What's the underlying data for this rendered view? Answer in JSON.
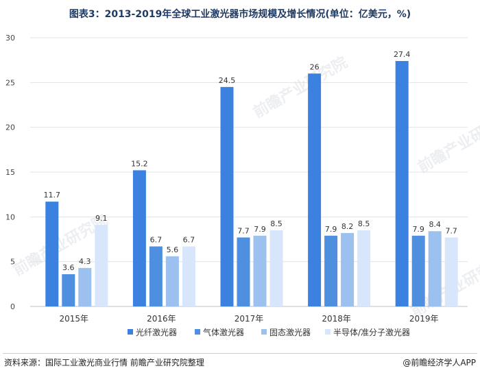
{
  "title": "图表3：2013-2019年全球工业激光器市场规模及增长情况(单位：亿美元，%)",
  "footer": {
    "source": "资料来源：国际工业激光商业行情 前瞻产业研究院整理",
    "brand": "@前瞻经济学人APP"
  },
  "watermark": "前瞻产业研究院",
  "chart_data": {
    "type": "bar",
    "categories": [
      "2015年",
      "2016年",
      "2017年",
      "2018年",
      "2019年"
    ],
    "series": [
      {
        "name": "光纤激光器",
        "color": "#3b82e0",
        "values": [
          11.7,
          15.2,
          24.5,
          26,
          27.4
        ],
        "labels": [
          "11.7",
          "15.2",
          "24.5",
          "26",
          "27.4"
        ]
      },
      {
        "name": "气体激光器",
        "color": "#4f8fdf",
        "values": [
          3.6,
          6.7,
          7.7,
          7.9,
          7.9
        ],
        "labels": [
          "3.6",
          "6.7",
          "7.7",
          "7.9",
          "7.9"
        ]
      },
      {
        "name": "固态激光器",
        "color": "#9dc1ef",
        "values": [
          4.3,
          5.6,
          7.9,
          8.2,
          8.4
        ],
        "labels": [
          "4.3",
          "5.6",
          "7.9",
          "8.2",
          "8.4"
        ]
      },
      {
        "name": "半导体/准分子激光器",
        "color": "#d7e6fa",
        "values": [
          9.1,
          6.7,
          8.5,
          8.5,
          7.7
        ],
        "labels": [
          "9.1",
          "6.7",
          "8.5",
          "8.5",
          "7.7"
        ]
      }
    ],
    "ylim": [
      0,
      30
    ],
    "yticks": [
      "0",
      "5",
      "10",
      "15",
      "20",
      "25",
      "30"
    ],
    "grid": true,
    "legend": "bottom"
  }
}
